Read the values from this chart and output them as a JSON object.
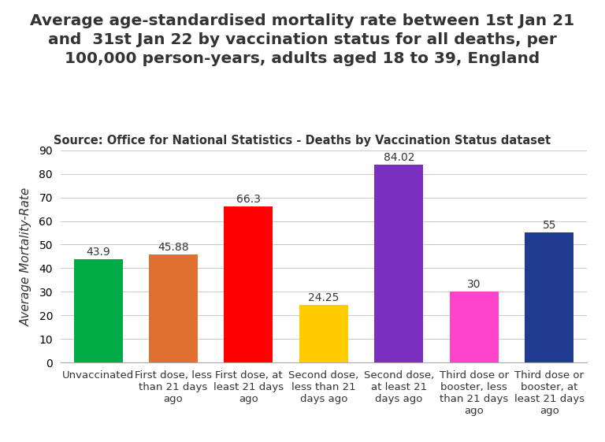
{
  "title": "Average age-standardised mortality rate between 1st Jan 21\nand  31st Jan 22 by vaccination status for all deaths, per\n100,000 person-years, adults aged 18 to 39, England",
  "subtitle": "Source: Office for National Statistics - Deaths by Vaccination Status dataset",
  "categories": [
    "Unvaccinated",
    "First dose, less\nthan 21 days\nago",
    "First dose, at\nleast 21 days\nago",
    "Second dose,\nless than 21\ndays ago",
    "Second dose,\nat least 21\ndays ago",
    "Third dose or\nbooster, less\nthan 21 days\nago",
    "Third dose or\nbooster, at\nleast 21 days\nago"
  ],
  "values": [
    43.9,
    45.88,
    66.3,
    24.25,
    84.02,
    30,
    55
  ],
  "bar_colors": [
    "#00aa44",
    "#e07030",
    "#ff0000",
    "#ffcc00",
    "#7b2fbe",
    "#ff44cc",
    "#1f3a8f"
  ],
  "ylabel": "Average Mortality-Rate",
  "ylim": [
    0,
    90
  ],
  "yticks": [
    0,
    10,
    20,
    30,
    40,
    50,
    60,
    70,
    80,
    90
  ],
  "value_labels": [
    "43.9",
    "45.88",
    "66.3",
    "24.25",
    "84.02",
    "30",
    "55"
  ],
  "title_fontsize": 14.5,
  "subtitle_fontsize": 10.5,
  "ylabel_fontsize": 11,
  "tick_fontsize": 10,
  "value_fontsize": 10,
  "background_color": "#ffffff",
  "grid_color": "#cccccc",
  "text_color": "#333333"
}
